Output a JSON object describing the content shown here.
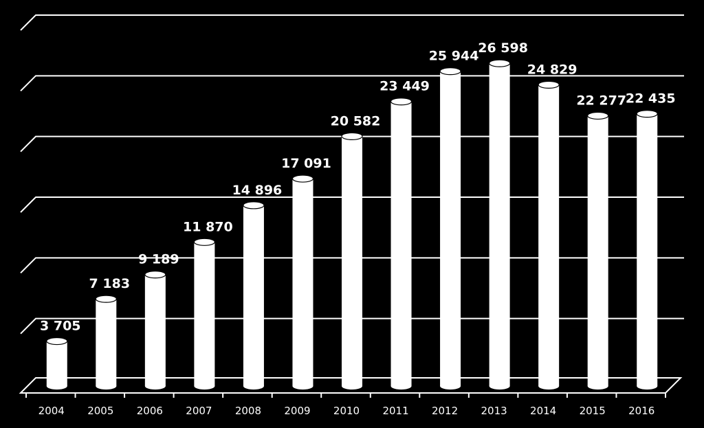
{
  "chart_data": {
    "type": "bar",
    "title": "",
    "xlabel": "",
    "ylabel": "",
    "categories": [
      "2004",
      "2005",
      "2006",
      "2007",
      "2008",
      "2009",
      "2010",
      "2011",
      "2012",
      "2013",
      "2014",
      "2015",
      "2016"
    ],
    "values": [
      3705,
      7183,
      9189,
      11870,
      14896,
      17091,
      20582,
      23449,
      25944,
      26598,
      24829,
      22277,
      22435
    ],
    "value_labels": [
      "3 705",
      "7 183",
      "9 189",
      "11 870",
      "14 896",
      "17 091",
      "20 582",
      "23 449",
      "25 944",
      "26 598",
      "24 829",
      "22 277",
      "22 435"
    ],
    "ylim": [
      0,
      30000
    ],
    "grid": true,
    "style": "3d-cylinder",
    "colors": {
      "background": "#000000",
      "bars": "#ffffff",
      "text": "#ffffff",
      "grid": "#ffffff"
    }
  }
}
